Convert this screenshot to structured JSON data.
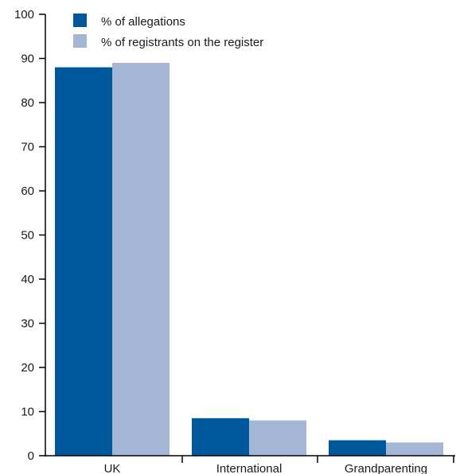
{
  "chart_data": {
    "type": "bar",
    "categories": [
      "UK",
      "International",
      "Grandparenting"
    ],
    "series": [
      {
        "name": "% of allegations",
        "values": [
          88,
          8.5,
          3.5
        ],
        "color": "#00589c"
      },
      {
        "name": "% of registrants on the register",
        "values": [
          89,
          8,
          3
        ],
        "color": "#a3b6d6"
      }
    ],
    "title": "",
    "xlabel": "",
    "ylabel": "",
    "ylim": [
      0,
      100
    ],
    "yticks": [
      "0",
      "10",
      "20",
      "30",
      "40",
      "50",
      "60",
      "70",
      "80",
      "90",
      "100"
    ],
    "grid": false,
    "legend_position": "top-left"
  }
}
